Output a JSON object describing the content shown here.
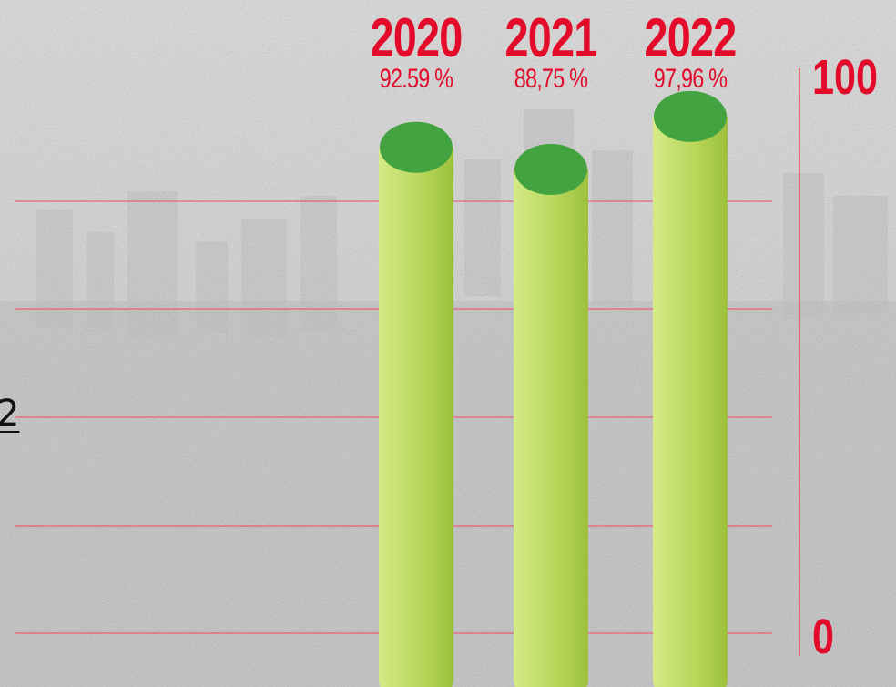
{
  "colors": {
    "accent_red": "#e30a2a",
    "bar_body_light": "#d4ea86",
    "bar_body_dark": "#9cc03c",
    "bar_top": "#43a340",
    "gridline": "#f04a5a"
  },
  "edge_text": "2",
  "chart_data": {
    "type": "bar",
    "categories": [
      "2020",
      "2021",
      "2022"
    ],
    "values": [
      92.59,
      88.75,
      97.96
    ],
    "value_labels": [
      "92.59 %",
      "88,75 %",
      "97,96 %"
    ],
    "ylim": [
      0,
      100
    ],
    "y_tick_labels": [
      "0",
      "100"
    ],
    "grid": true,
    "style": "3d-cylinder",
    "title": "",
    "xlabel": "",
    "ylabel": ""
  }
}
